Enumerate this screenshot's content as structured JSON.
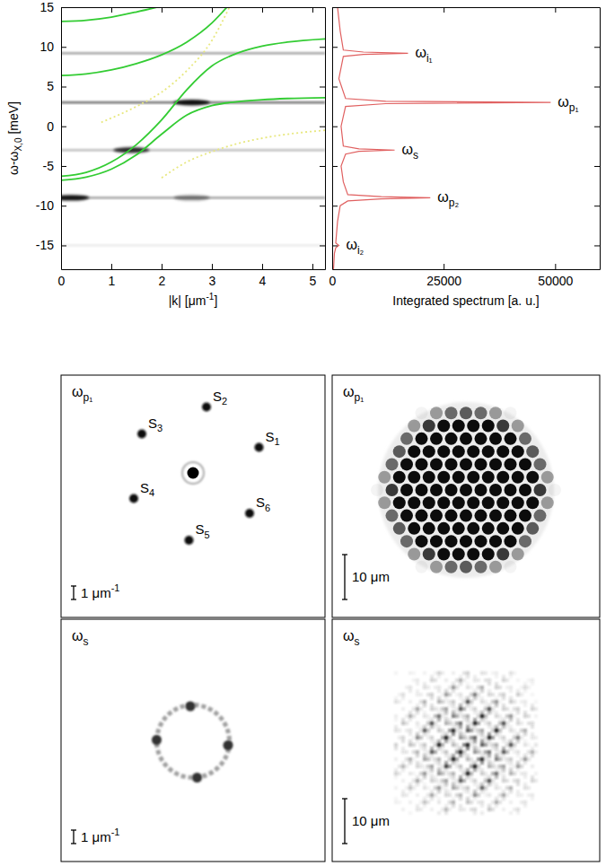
{
  "chart_data": [
    {
      "type": "line",
      "xlabel": [
        "|k| [μm",
        {
          "sup": "-1"
        },
        "]"
      ],
      "ylabel": [
        "ω-ω",
        {
          "sub": "X,0"
        },
        " [meV]"
      ],
      "xlim": [
        0,
        5.25
      ],
      "ylim": [
        -18,
        15
      ],
      "xticks": [
        0,
        1,
        2,
        3,
        4,
        5
      ],
      "yticks": [
        -15,
        -10,
        -5,
        0,
        5,
        10,
        15
      ],
      "series": [
        {
          "color": "#33cc33",
          "line_style": "solid",
          "x": [
            0,
            0.5,
            1,
            1.5,
            1.9
          ],
          "values": [
            13.2,
            13.35,
            13.75,
            14.4,
            15
          ]
        },
        {
          "color": "#33cc33",
          "line_style": "solid",
          "x": [
            0,
            0.5,
            1,
            1.5,
            2,
            2.5,
            3,
            3.3
          ],
          "values": [
            6.4,
            6.6,
            7.1,
            7.9,
            9.0,
            10.6,
            13.0,
            15
          ]
        },
        {
          "color": "#33cc33",
          "line_style": "solid",
          "x": [
            0,
            0.5,
            1,
            1.5,
            2,
            2.5,
            3,
            3.5,
            4,
            4.5,
            5.25
          ],
          "values": [
            -6.3,
            -5.8,
            -4.5,
            -2.3,
            0.8,
            4.6,
            7.6,
            9.2,
            10.1,
            10.6,
            11.0
          ]
        },
        {
          "color": "#33cc33",
          "line_style": "solid",
          "x": [
            0,
            0.5,
            1,
            1.5,
            2,
            2.5,
            3,
            3.5,
            4,
            4.5,
            5.25
          ],
          "values": [
            -6.8,
            -6.4,
            -5.4,
            -3.6,
            -1.0,
            1.4,
            2.6,
            3.1,
            3.35,
            3.5,
            3.6
          ]
        },
        {
          "color": "#e8e880",
          "line_style": "dotted",
          "x": [
            0.8,
            1.5,
            2,
            2.5,
            3,
            3.35
          ],
          "values": [
            0.5,
            2.5,
            4.3,
            7.0,
            10.8,
            15
          ]
        },
        {
          "color": "#e8e880",
          "line_style": "dotted",
          "x": [
            2,
            2.5,
            3,
            3.5,
            4,
            4.5,
            5.25
          ],
          "values": [
            -6.5,
            -4.5,
            -3.2,
            -2.2,
            -1.5,
            -1.0,
            -0.5
          ]
        }
      ],
      "spectral_lines": {
        "omega": [
          9.2,
          3,
          -3,
          -9,
          -15
        ],
        "intensity": [
          0.35,
          0.55,
          0.25,
          0.35,
          0.08
        ]
      },
      "bright_spots": {
        "k": [
          2.6,
          1.4,
          0.2,
          2.6
        ],
        "omega": [
          3,
          -3,
          -9,
          -9
        ],
        "intensity": [
          0.9,
          0.8,
          0.9,
          0.4
        ]
      }
    },
    {
      "type": "line",
      "orientation": "horizontal",
      "tick_labels": "x",
      "xlabel": "Integrated spectrum [a. u.]",
      "xlim": [
        0,
        60000
      ],
      "ylim": [
        -18,
        15
      ],
      "xticks": [
        0,
        25000,
        50000
      ],
      "yticks": [
        -15,
        -10,
        -5,
        0,
        5,
        10,
        15
      ],
      "y": [
        -18,
        -16,
        -15.3,
        -15,
        -14.7,
        -12,
        -10,
        -9.4,
        -9.15,
        -9,
        -8.85,
        -8.6,
        -7,
        -5,
        -3.5,
        -3.15,
        -3,
        -2.85,
        -2.5,
        0,
        2.5,
        2.85,
        3,
        3.15,
        3.5,
        6,
        8.8,
        9.05,
        9.2,
        9.35,
        9.6,
        12,
        15
      ],
      "series": [
        {
          "color": "#e06060",
          "line_style": "solid",
          "values": [
            300,
            500,
            800,
            1500,
            800,
            1200,
            1800,
            3500,
            11000,
            22000,
            11000,
            3500,
            2500,
            2000,
            3000,
            6000,
            14000,
            6000,
            2500,
            2000,
            3000,
            12000,
            49000,
            12000,
            3000,
            1500,
            2500,
            7000,
            17000,
            7000,
            2500,
            1800,
            1200
          ]
        }
      ],
      "peaks": [
        {
          "label": [
            "ω",
            {
              "sub": "i₁"
            }
          ],
          "omega": 9.2,
          "value": 17000
        },
        {
          "label": [
            "ω",
            {
              "sub": "p₁"
            }
          ],
          "omega": 3,
          "value": 49000
        },
        {
          "label": [
            "ω",
            {
              "sub": "s"
            }
          ],
          "omega": -3,
          "value": 14000
        },
        {
          "label": [
            "ω",
            {
              "sub": "p₂"
            }
          ],
          "omega": -9,
          "value": 22000
        },
        {
          "label": [
            "ω",
            {
              "sub": "i₂"
            }
          ],
          "omega": -15,
          "value": 1500
        }
      ]
    },
    {
      "type": "image",
      "title": [
        "ω",
        {
          "sub": "p₁"
        }
      ],
      "scale_bar": {
        "value": 1,
        "label": [
          "1 μm",
          {
            "sup": "-1"
          }
        ]
      },
      "center": {
        "kx": 0,
        "ky": 0
      },
      "spots": {
        "labels": [
          [
            "S",
            {
              "sub": "1"
            }
          ],
          [
            "S",
            {
              "sub": "2"
            }
          ],
          [
            "S",
            {
              "sub": "3"
            }
          ],
          [
            "S",
            {
              "sub": "4"
            }
          ],
          [
            "S",
            {
              "sub": "5"
            }
          ],
          [
            "S",
            {
              "sub": "6"
            }
          ]
        ],
        "kx": [
          4.9,
          1.0,
          -3.8,
          -4.4,
          -0.3,
          4.2
        ],
        "ky": [
          1.9,
          4.9,
          2.9,
          -1.9,
          -5.0,
          -3.0
        ]
      }
    },
    {
      "type": "image",
      "title": [
        "ω",
        {
          "sub": "p₁"
        }
      ],
      "scale_bar": {
        "value": 10,
        "label": "10 μm"
      }
    },
    {
      "type": "image",
      "title": [
        "ω",
        {
          "sub": "s"
        }
      ],
      "scale_bar": {
        "value": 1,
        "label": [
          "1 μm",
          {
            "sup": "-1"
          }
        ]
      },
      "ring": {
        "radius": 2.7
      },
      "spots": {
        "kx": [
          2.6,
          -0.2,
          -2.7,
          0.3
        ],
        "ky": [
          -0.3,
          2.6,
          0.1,
          -2.7
        ]
      }
    },
    {
      "type": "image",
      "title": [
        "ω",
        {
          "sub": "s"
        }
      ],
      "scale_bar": {
        "value": 10,
        "label": "10 μm"
      }
    }
  ]
}
